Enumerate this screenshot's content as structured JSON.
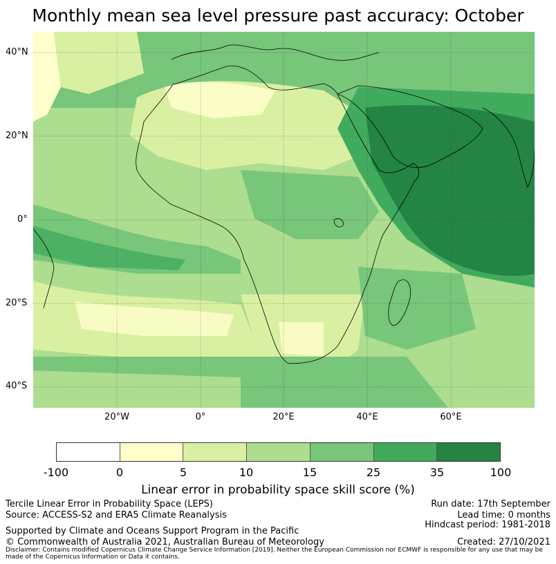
{
  "title": "Monthly mean sea level pressure past accuracy: October",
  "map": {
    "lat_labels": [
      "40°N",
      "20°N",
      "0°",
      "20°S",
      "40°S"
    ],
    "lon_labels": [
      "20°W",
      "0°",
      "20°E",
      "40°E",
      "60°E"
    ],
    "lat_range": [
      -45,
      45
    ],
    "lon_range": [
      -40,
      80
    ]
  },
  "colorbar": {
    "ticks": [
      "-100",
      "0",
      "5",
      "10",
      "15",
      "25",
      "35",
      "100"
    ],
    "colors": [
      "#ffffff",
      "#ffffcc",
      "#d9f0a3",
      "#addd8e",
      "#78c679",
      "#41ab5d",
      "#238443"
    ],
    "label": "Linear error in probability space skill score (%)"
  },
  "footer": {
    "left1": "Tercile Linear Error in Probability Space (LEPS)",
    "left2": "Source: ACCESS-S2 and ERA5 Climate Reanalysis",
    "support": "Supported by Climate and Oceans Support Program in the Pacific",
    "copyright": "© Commonwealth of Australia 2021, Australian Bureau of Meteorology",
    "run_date": "Run date: 17th September",
    "lead_time": "Lead time: 0 months",
    "hindcast": "Hindcast period: 1981-2018",
    "created": "Created: 27/10/2021",
    "disclaimer": "Disclaimer: Contains modified Copernicus Climate Change Service Information [2019]. Neither the European Commission nor ECMWF is responsible for any use that may be made of the Copernicus Information or Data it contains."
  }
}
